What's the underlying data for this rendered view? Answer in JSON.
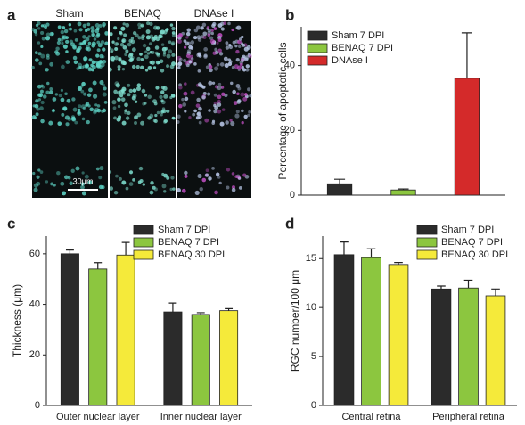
{
  "image_panel": {
    "label": "a",
    "columns": [
      "Sham",
      "BENAQ",
      "DNAse I"
    ],
    "scale_bar": "30μm"
  },
  "chart_data": [
    {
      "type": "bar",
      "label": "b",
      "ylabel": "Percentage of apoptotic cells",
      "categories": [
        null
      ],
      "series": [
        {
          "name": "Sham 7 DPI",
          "color": "#2b2b2b",
          "values": [
            3.5
          ],
          "errors": [
            1.4
          ]
        },
        {
          "name": "BENAQ 7 DPI",
          "color": "#8cc63f",
          "values": [
            1.6
          ],
          "errors": [
            0.3
          ]
        },
        {
          "name": "DNAse I",
          "color": "#d42a2a",
          "values": [
            36.1
          ],
          "errors": [
            14
          ]
        }
      ],
      "ylim": [
        0,
        52
      ],
      "yticks": [
        0,
        20,
        40
      ]
    },
    {
      "type": "bar",
      "label": "c",
      "ylabel": "Thickness (μm)",
      "categories": [
        "Outer nuclear layer",
        "Inner nuclear layer"
      ],
      "series": [
        {
          "name": "Sham 7 DPI",
          "color": "#2b2b2b",
          "values": [
            60,
            37
          ],
          "errors": [
            1.5,
            3.5
          ]
        },
        {
          "name": "BENAQ 7 DPI",
          "color": "#8cc63f",
          "values": [
            54,
            36
          ],
          "errors": [
            2.5,
            0.7
          ]
        },
        {
          "name": "BENAQ 30 DPI",
          "color": "#f5ea3a",
          "values": [
            59.5,
            37.5
          ],
          "errors": [
            5,
            0.8
          ]
        }
      ],
      "ylim": [
        0,
        67
      ],
      "yticks": [
        0,
        20,
        40,
        60
      ]
    },
    {
      "type": "bar",
      "label": "d",
      "ylabel": "RGC number/100 μm",
      "categories": [
        "Central retina",
        "Peripheral retina"
      ],
      "series": [
        {
          "name": "Sham 7 DPI",
          "color": "#2b2b2b",
          "values": [
            15.4,
            11.9
          ],
          "errors": [
            1.3,
            0.3
          ]
        },
        {
          "name": "BENAQ 7 DPI",
          "color": "#8cc63f",
          "values": [
            15.1,
            12.0
          ],
          "errors": [
            0.9,
            0.8
          ]
        },
        {
          "name": "BENAQ 30 DPI",
          "color": "#f5ea3a",
          "values": [
            14.4,
            11.2
          ],
          "errors": [
            0.2,
            0.7
          ]
        }
      ],
      "ylim": [
        0,
        17.3
      ],
      "yticks": [
        0,
        5,
        10,
        15
      ]
    }
  ]
}
